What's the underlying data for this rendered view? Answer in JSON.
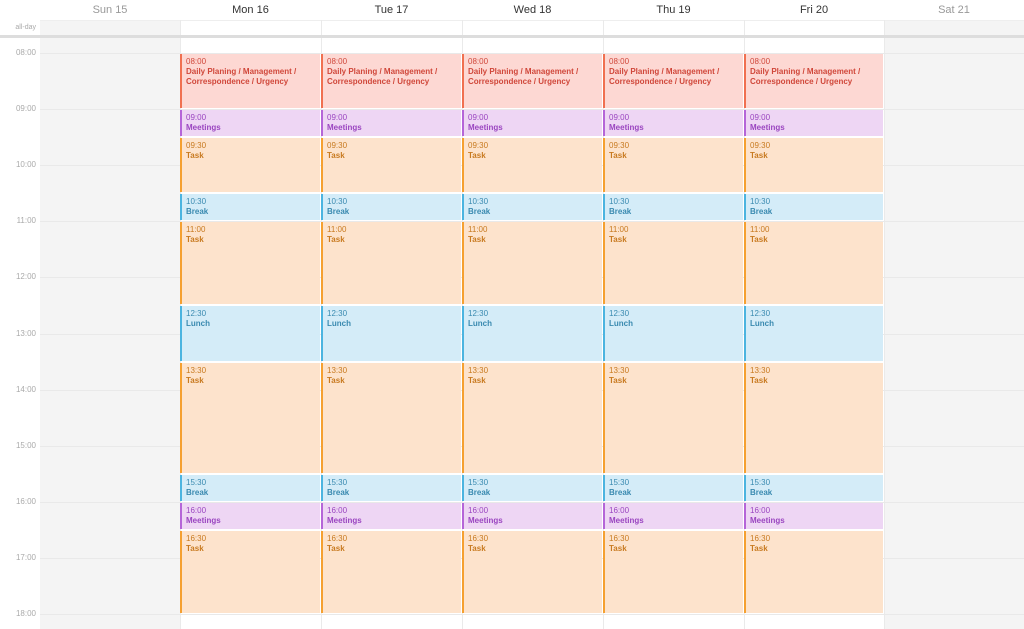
{
  "allday_label": "all-day",
  "days": [
    {
      "label": "Sun 15",
      "weekend": true
    },
    {
      "label": "Mon 16",
      "weekend": false
    },
    {
      "label": "Tue 17",
      "weekend": false
    },
    {
      "label": "Wed 18",
      "weekend": false
    },
    {
      "label": "Thu 19",
      "weekend": false
    },
    {
      "label": "Fri 20",
      "weekend": false
    },
    {
      "label": "Sat 21",
      "weekend": true
    }
  ],
  "hours": [
    "08:00",
    "09:00",
    "10:00",
    "11:00",
    "12:00",
    "13:00",
    "14:00",
    "15:00",
    "16:00",
    "17:00",
    "18:00"
  ],
  "colors": {
    "planning": {
      "bg": "#fdd8d3",
      "border": "#f07050",
      "text": "#d0473a"
    },
    "meetings": {
      "bg": "#eed6f4",
      "border": "#b565d8",
      "text": "#9a45c0"
    },
    "task": {
      "bg": "#fde3cc",
      "border": "#f5a030",
      "text": "#c87a20"
    },
    "break": {
      "bg": "#d4ecf8",
      "border": "#4bb4e0",
      "text": "#3a8ab0"
    }
  },
  "events": [
    {
      "start": "08:00",
      "title": "Daily Planing / Management / Correspondence / Urgency",
      "type": "planning",
      "s": 8,
      "e": 9
    },
    {
      "start": "09:00",
      "title": "Meetings",
      "type": "meetings",
      "s": 9,
      "e": 9.5
    },
    {
      "start": "09:30",
      "title": "Task",
      "type": "task",
      "s": 9.5,
      "e": 10.5
    },
    {
      "start": "10:30",
      "title": "Break",
      "type": "break",
      "s": 10.5,
      "e": 11
    },
    {
      "start": "11:00",
      "title": "Task",
      "type": "task",
      "s": 11,
      "e": 12.5
    },
    {
      "start": "12:30",
      "title": "Lunch",
      "type": "break",
      "s": 12.5,
      "e": 13.5
    },
    {
      "start": "13:30",
      "title": "Task",
      "type": "task",
      "s": 13.5,
      "e": 15.5
    },
    {
      "start": "15:30",
      "title": "Break",
      "type": "break",
      "s": 15.5,
      "e": 16
    },
    {
      "start": "16:00",
      "title": "Meetings",
      "type": "meetings",
      "s": 16,
      "e": 16.5
    },
    {
      "start": "16:30",
      "title": "Task",
      "type": "task",
      "s": 16.5,
      "e": 18
    }
  ]
}
